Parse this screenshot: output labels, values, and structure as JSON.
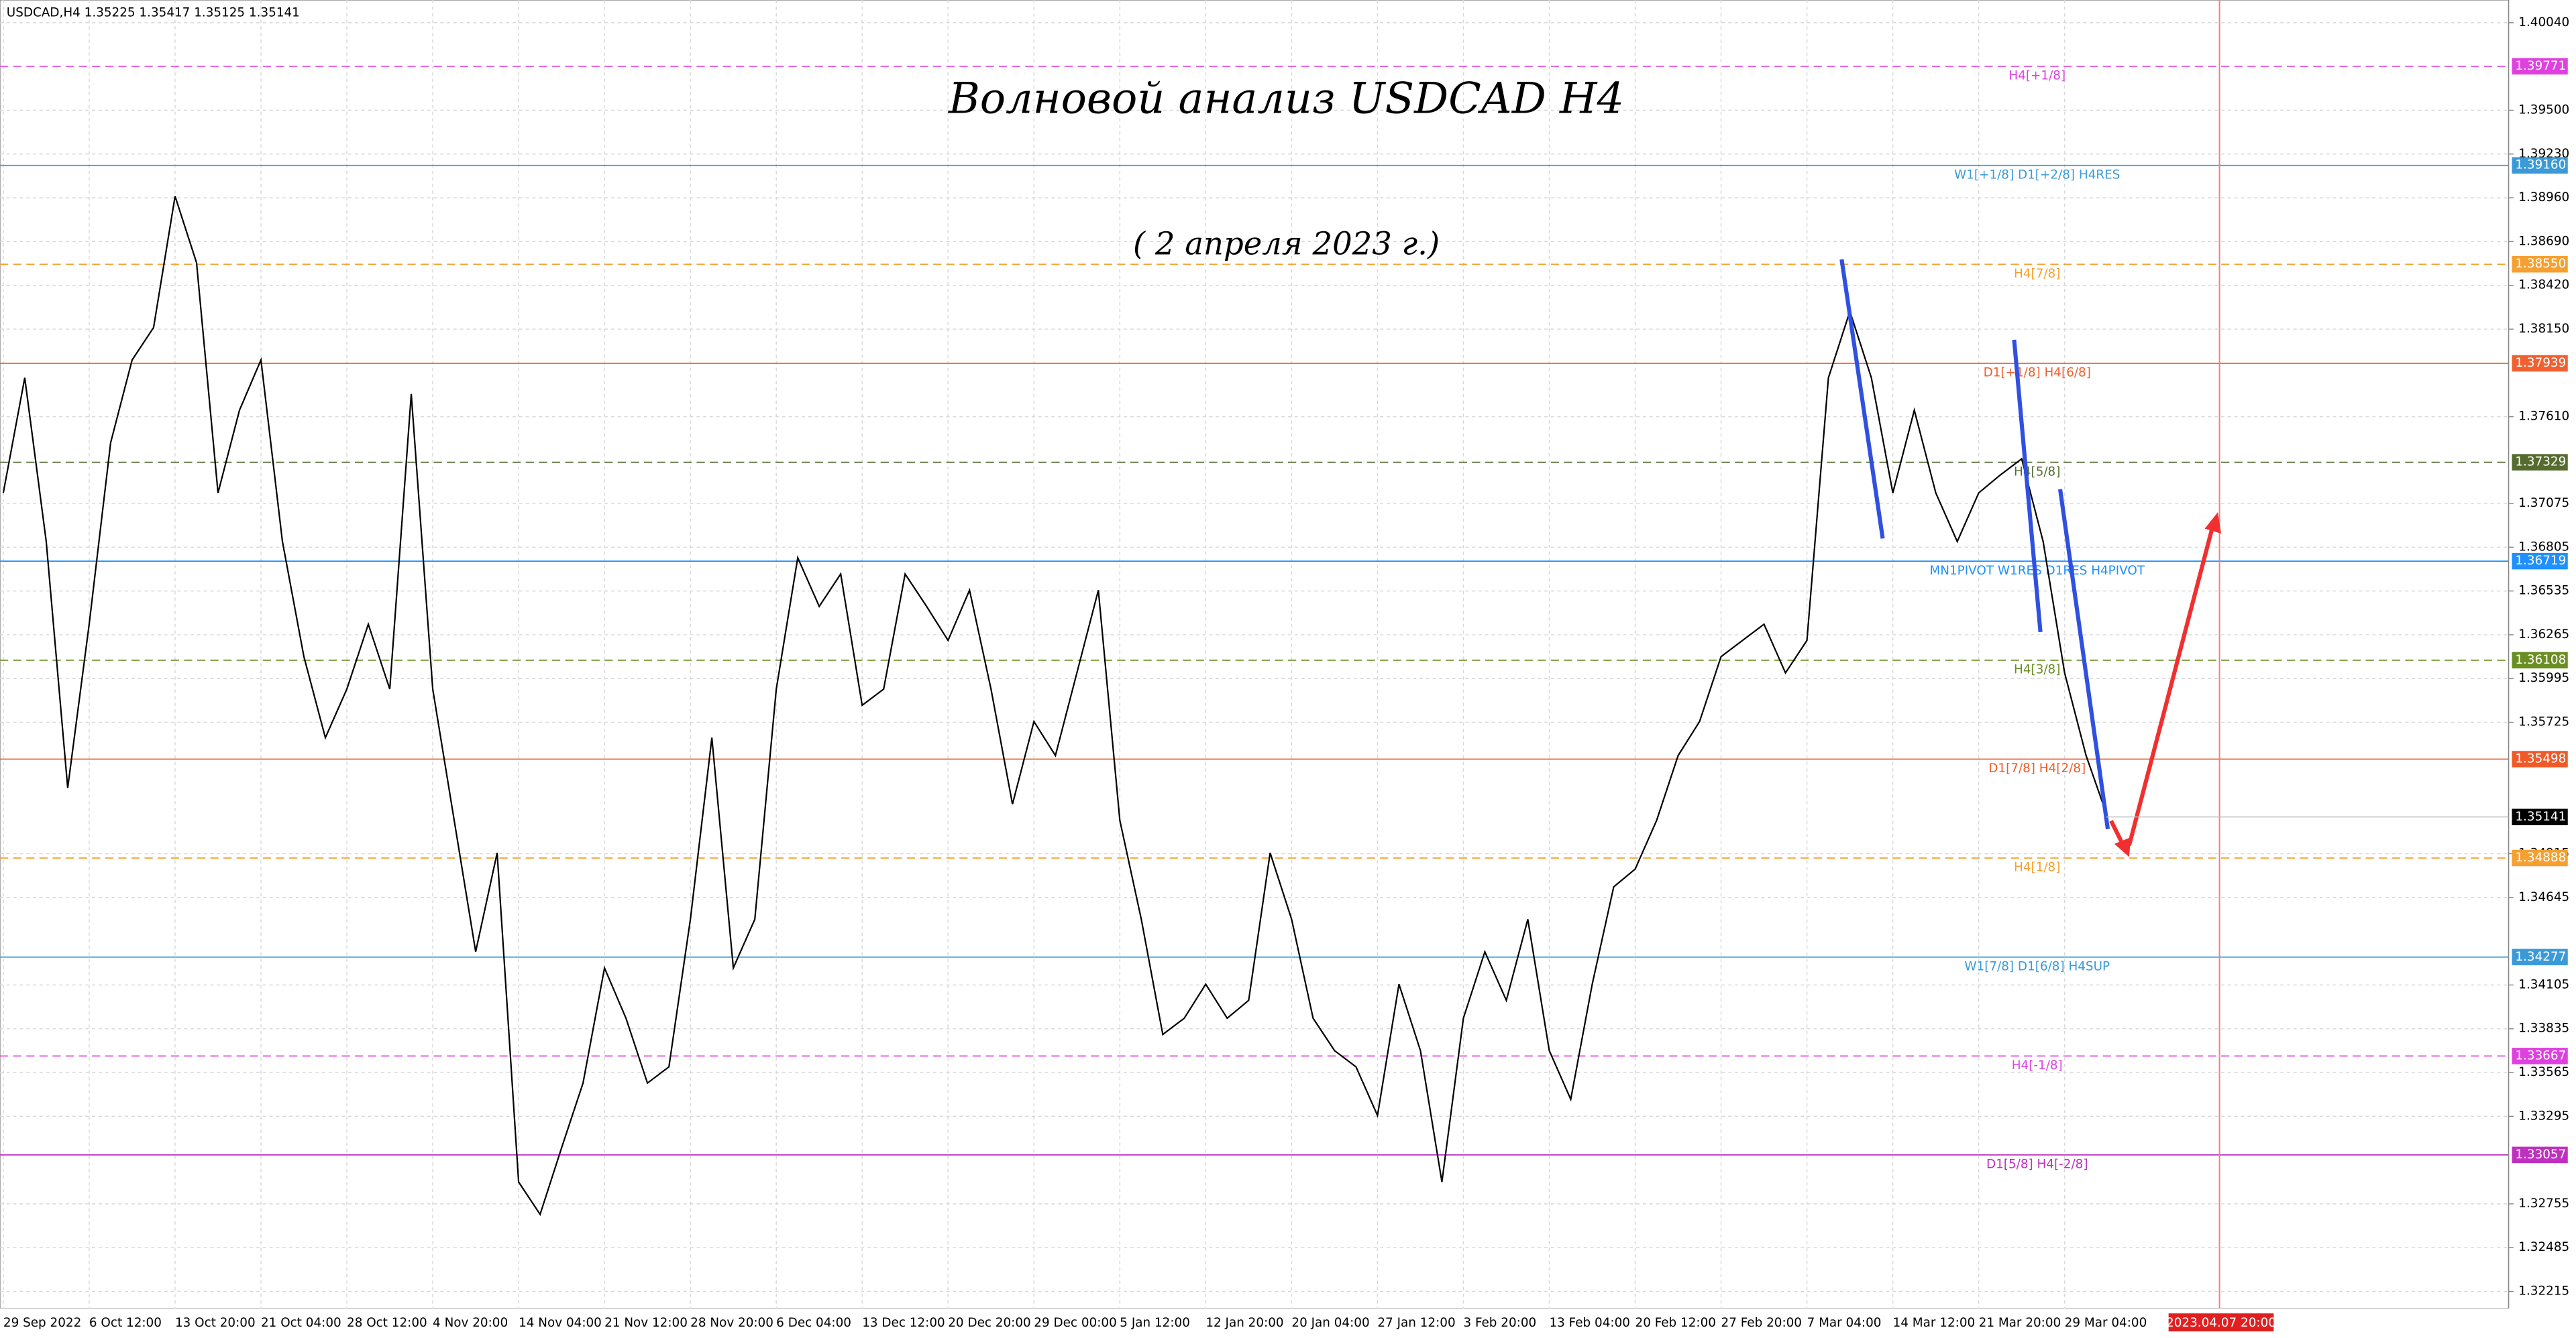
{
  "chart_data": {
    "type": "line",
    "header": "USDCAD,H4  1.35225 1.35417 1.35125 1.35141",
    "title": "Волновой анализ USDCAD H4",
    "subtitle": "( 2 апреля 2023 г.)",
    "grid": true,
    "ylim": [
      1.3211,
      1.4018
    ],
    "yticks": [
      {
        "value": 1.4004,
        "label": "1.40040"
      },
      {
        "value": 1.395,
        "label": "1.39500"
      },
      {
        "value": 1.3923,
        "label": "1.39230"
      },
      {
        "value": 1.3896,
        "label": "1.38960"
      },
      {
        "value": 1.3869,
        "label": "1.38690"
      },
      {
        "value": 1.3842,
        "label": "1.38420"
      },
      {
        "value": 1.3815,
        "label": "1.38150"
      },
      {
        "value": 1.3761,
        "label": "1.37610"
      },
      1.37075,
      1.36805,
      1.36535,
      1.36265,
      1.35995,
      1.35725,
      1.34915,
      1.34645,
      1.34105,
      1.33835,
      1.33565,
      1.33295,
      1.32755,
      1.32485,
      1.32215
    ],
    "categories": [
      "29 Sep 2022",
      null,
      null,
      null,
      "6 Oct 12:00",
      null,
      null,
      null,
      "13 Oct 20:00",
      null,
      null,
      null,
      "21 Oct 04:00",
      null,
      null,
      null,
      "28 Oct 12:00",
      null,
      null,
      null,
      "4 Nov 20:00",
      null,
      null,
      null,
      "14 Nov 04:00",
      null,
      null,
      null,
      "21 Nov 12:00",
      null,
      null,
      null,
      "28 Nov 20:00",
      null,
      null,
      null,
      "6 Dec 04:00",
      null,
      null,
      null,
      "13 Dec 12:00",
      null,
      null,
      null,
      "20 Dec 20:00",
      null,
      null,
      null,
      "29 Dec 00:00",
      null,
      null,
      null,
      "5 Jan 12:00",
      null,
      null,
      null,
      "12 Jan 20:00",
      null,
      null,
      null,
      "20 Jan 04:00",
      null,
      null,
      null,
      "27 Jan 12:00",
      null,
      null,
      null,
      "3 Feb 20:00",
      null,
      null,
      null,
      "13 Feb 04:00",
      null,
      null,
      null,
      "20 Feb 12:00",
      null,
      null,
      null,
      "27 Feb 20:00",
      null,
      null,
      null,
      "7 Mar 04:00",
      null,
      null,
      null,
      "14 Mar 12:00",
      null,
      null,
      null,
      "21 Mar 20:00",
      null,
      null,
      null,
      "29 Mar 04:00",
      null,
      null
    ],
    "series": [
      {
        "color": "#000000",
        "values": [
          1.3714,
          1.3785,
          1.3684,
          1.3532,
          1.3633,
          1.3745,
          1.3796,
          1.3816,
          1.3897,
          1.3856,
          1.3714,
          1.3765,
          1.3796,
          1.3684,
          1.3613,
          1.3563,
          1.3593,
          1.3633,
          1.3593,
          1.3775,
          1.3593,
          1.3512,
          1.3431,
          1.3492,
          1.3289,
          1.3269,
          1.331,
          1.335,
          1.3421,
          1.339,
          1.335,
          1.336,
          1.3451,
          1.3563,
          1.3421,
          1.3451,
          1.3593,
          1.3674,
          1.3644,
          1.3664,
          1.3583,
          1.3593,
          1.3664,
          1.3644,
          1.3623,
          1.3654,
          1.3593,
          1.3522,
          1.3573,
          1.3552,
          1.3603,
          1.3654,
          1.3512,
          1.3451,
          1.338,
          1.339,
          1.3411,
          1.339,
          1.3401,
          1.3492,
          1.3451,
          1.339,
          1.337,
          1.336,
          1.333,
          1.3411,
          1.337,
          1.3289,
          1.339,
          1.3431,
          1.3401,
          1.3451,
          1.337,
          1.334,
          1.3411,
          1.3471,
          1.3482,
          1.3512,
          1.3552,
          1.3573,
          1.3613,
          1.3623,
          1.3633,
          1.3603,
          1.3623,
          1.3785,
          1.3826,
          1.3785,
          1.3714,
          1.3765,
          1.3714,
          1.3684,
          1.3714,
          1.3725,
          1.3735,
          1.3684,
          1.3603,
          1.3552,
          1.35141
        ]
      }
    ],
    "current_price": 1.35141,
    "future_time_label": "2023.04.07 20:00",
    "levels": [
      {
        "label": "H4[+1/8]",
        "value": 1.39771,
        "color": "#e040e0",
        "style": "dashed"
      },
      {
        "label": "W1[+1/8] D1[+2/8] H4RES",
        "value": {
          "value": 1.3916,
          "label": "1.39160"
        },
        "color": "#3a9ad9",
        "style": "solid"
      },
      {
        "label": "H4[7/8]",
        "value": {
          "value": 1.3855,
          "label": "1.38550"
        },
        "color": "#f5a030",
        "style": "dashed"
      },
      {
        "label": "D1[+1/8] H4[6/8]",
        "value": 1.37939,
        "color": "#f06030",
        "style": "solid"
      },
      {
        "label": "H4[5/8]",
        "value": 1.37329,
        "color": "#556b2f",
        "style": "dashed"
      },
      {
        "label": "MN1PIVOT W1RES D1RES H4PIVOT",
        "value": 1.36719,
        "color": "#1e90ff",
        "style": "solid"
      },
      {
        "label": "H4[3/8]",
        "value": 1.36108,
        "color": "#6b8e23",
        "style": "dashed"
      },
      {
        "label": "D1[7/8] H4[2/8]",
        "value": 1.35498,
        "color": "#f05a28",
        "style": "solid"
      },
      {
        "label": "H4[1/8]",
        "value": 1.34888,
        "color": "#f5a030",
        "style": "dashed"
      },
      {
        "label": "W1[7/8] D1[6/8] H4SUP",
        "value": 1.34277,
        "color": "#3a9ad9",
        "style": "solid"
      },
      {
        "label": "H4[-1/8]",
        "value": 1.33667,
        "color": "#e040e0",
        "style": "dashed"
      },
      {
        "label": "D1[5/8] H4[-2/8]",
        "value": 1.33057,
        "color": "#c030c0",
        "style": "solid"
      }
    ]
  }
}
